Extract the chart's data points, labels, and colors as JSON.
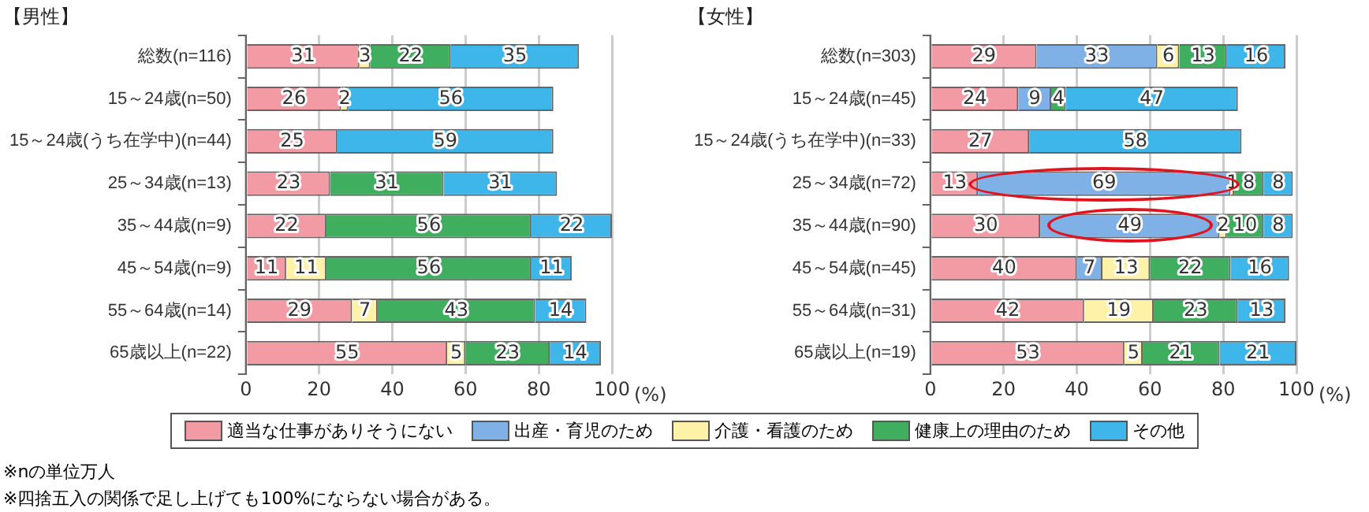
{
  "chart_data": [
    {
      "type": "bar",
      "orientation": "horizontal",
      "stacked": true,
      "title": "【男性】",
      "xlabel": "(%)",
      "categories": [
        "総数(n=116)",
        "15～24歳(n=50)",
        "15～24歳(うち在学中)(n=44)",
        "25～34歳(n=13)",
        "35～44歳(n=9)",
        "45～54歳(n=9)",
        "55～64歳(n=14)",
        "65歳以上(n=22)"
      ],
      "series": [
        {
          "name": "適当な仕事がありそうにない",
          "color": "#f29ba4",
          "values": [
            31,
            26,
            25,
            23,
            22,
            11,
            29,
            55
          ]
        },
        {
          "name": "出産・育児のため",
          "color": "#7fb0e6",
          "values": [
            null,
            null,
            null,
            null,
            null,
            null,
            null,
            null
          ]
        },
        {
          "name": "介護・看護のため",
          "color": "#fdf2a8",
          "values": [
            3,
            2,
            null,
            null,
            null,
            11,
            7,
            5
          ]
        },
        {
          "name": "健康上の理由のため",
          "color": "#3fae5f",
          "values": [
            22,
            null,
            null,
            31,
            56,
            56,
            43,
            23
          ]
        },
        {
          "name": "その他",
          "color": "#3fb6ea",
          "values": [
            35,
            56,
            59,
            31,
            22,
            11,
            14,
            14
          ]
        }
      ],
      "xlim": [
        0,
        100
      ],
      "xticks": [
        0,
        20,
        40,
        60,
        80,
        100
      ],
      "grid": "x",
      "data_labels": true,
      "legend": "bottom",
      "annotations": [
        "※nの単位万人",
        "※四捨五入の関係で足し上げても100%にならない場合がある。"
      ]
    },
    {
      "type": "bar",
      "orientation": "horizontal",
      "stacked": true,
      "title": "【女性】",
      "xlabel": "(%)",
      "categories": [
        "総数(n=303)",
        "15～24歳(n=45)",
        "15～24歳(うち在学中)(n=33)",
        "25～34歳(n=72)",
        "35～44歳(n=90)",
        "45～54歳(n=45)",
        "55～64歳(n=31)",
        "65歳以上(n=19)"
      ],
      "series": [
        {
          "color": "#f29ba4",
          "values": [
            29,
            24,
            27,
            13,
            30,
            40,
            42,
            53
          ]
        },
        {
          "color": "#7fb0e6",
          "values": [
            33,
            9,
            null,
            69,
            49,
            7,
            null,
            null
          ]
        },
        {
          "color": "#fdf2a8",
          "values": [
            6,
            null,
            null,
            1,
            2,
            13,
            19,
            5
          ]
        },
        {
          "color": "#3fae5f",
          "values": [
            13,
            4,
            null,
            8,
            10,
            22,
            23,
            21
          ]
        },
        {
          "color": "#3fb6ea",
          "values": [
            16,
            47,
            58,
            8,
            8,
            16,
            13,
            21
          ]
        }
      ],
      "xlim": [
        0,
        100
      ],
      "xticks": [
        0,
        20,
        40,
        60,
        80,
        100
      ],
      "grid": "x",
      "data_labels": true
    }
  ]
}
